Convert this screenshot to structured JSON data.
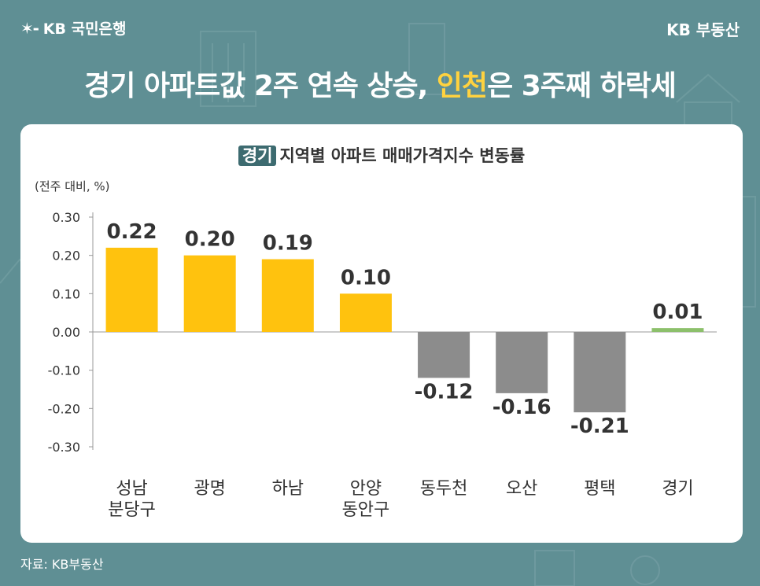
{
  "header": {
    "logo_text": "KB 국민은행",
    "logo_icon": "kb-star-icon",
    "brand": "KB 부동산",
    "headline_pre": "경기 아파트값 2주 연속 상승, ",
    "headline_highlight": "인천",
    "headline_post": "은 3주째 하락세"
  },
  "colors": {
    "background": "#5f8f94",
    "positive_bar": "#ffc20e",
    "negative_bar": "#8c8c8c",
    "total_bar": "#8cc06b",
    "highlight_text": "#ffd23f"
  },
  "chart_data": {
    "type": "bar",
    "title_tag": "경기",
    "title": "지역별 아파트 매매가격지수 변동률",
    "unit_label": "(전주 대비, %)",
    "categories": [
      [
        "성남",
        "분당구"
      ],
      [
        "광명"
      ],
      [
        "하남"
      ],
      [
        "안양",
        "동안구"
      ],
      [
        "동두천"
      ],
      [
        "오산"
      ],
      [
        "평택"
      ],
      [
        "경기"
      ]
    ],
    "values": [
      0.22,
      0.2,
      0.19,
      0.1,
      -0.12,
      -0.16,
      -0.21,
      0.01
    ],
    "value_labels": [
      "0.22",
      "0.20",
      "0.19",
      "0.10",
      "-0.12",
      "-0.16",
      "-0.21",
      "0.01"
    ],
    "y_ticks": [
      0.3,
      0.2,
      0.1,
      0.0,
      -0.1,
      -0.2,
      -0.3
    ],
    "y_tick_labels": [
      "0.30",
      "0.20",
      "0.10",
      "0.00",
      "-0.10",
      "-0.20",
      "-0.30"
    ],
    "ylim": [
      -0.3,
      0.3
    ],
    "grid": false,
    "legend": "none"
  },
  "footer": {
    "source": "자료: KB부동산"
  }
}
